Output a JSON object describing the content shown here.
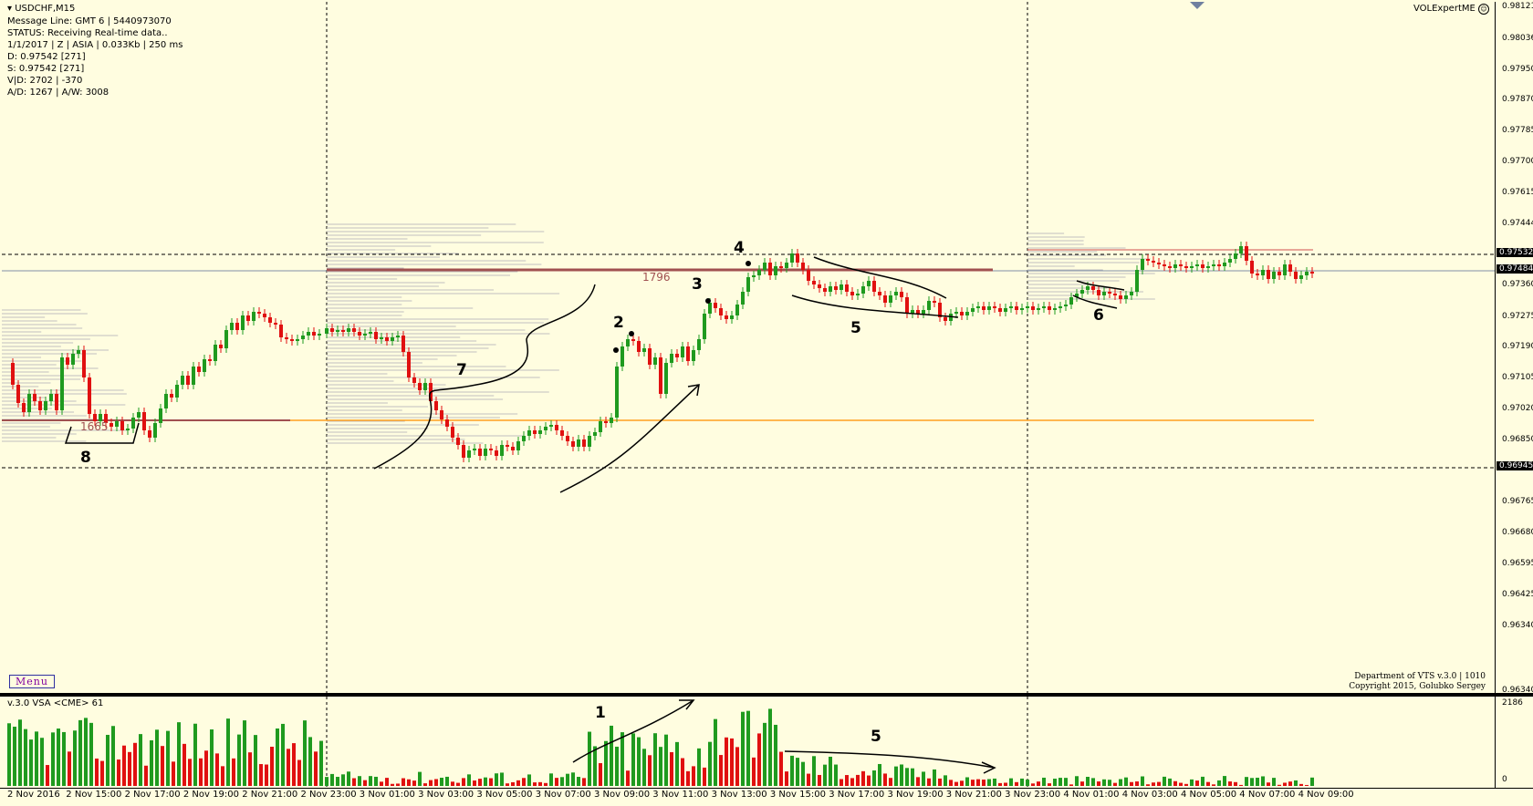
{
  "chart_header": {
    "symbol": "USDCHF,M15",
    "brand": "VOLExpertME"
  },
  "info_lines": [
    "Message Line: GMT 6 | 5440973070",
    "STATUS:  Receiving Real-time data..",
    "1/1/2017 | Z | ASIA | 0.033Kb | 250 ms",
    "D: 0.97542  [271]",
    "S: 0.97542  [271]",
    "V|D: 2702 | -370",
    "A/D: 1267 | A/W: 3008"
  ],
  "menu_label": "Menu",
  "credits": [
    "Department of VTS  v.3.0 | 1010",
    "Copyright 2015, Golubko Sergey"
  ],
  "indicator_label": "v.3.0 VSA <CME> 61",
  "volume_axis": {
    "max": "2186",
    "min": "0"
  },
  "price_labels": [
    "0.98121",
    "0.98036",
    "0.97950",
    "0.97870",
    "0.97785",
    "0.97700",
    "0.97615",
    "0.97444",
    "0.97360",
    "0.97275",
    "0.97190",
    "0.97105",
    "0.97020",
    "0.96850",
    "0.96765",
    "0.96680",
    "0.96595",
    "0.96425",
    "0.96340"
  ],
  "price_boxes": {
    "upper": "0.97532",
    "current": "0.97484",
    "lower": "0.96945"
  },
  "level_labels": {
    "upper": "1796",
    "lower": "1665"
  },
  "time_labels": [
    "2 Nov 2016",
    "2 Nov 15:00",
    "2 Nov 17:00",
    "2 Nov 19:00",
    "2 Nov 21:00",
    "2 Nov 23:00",
    "3 Nov 01:00",
    "3 Nov 03:00",
    "3 Nov 05:00",
    "3 Nov 07:00",
    "3 Nov 09:00",
    "3 Nov 11:00",
    "3 Nov 13:00",
    "3 Nov 15:00",
    "3 Nov 17:00",
    "3 Nov 19:00",
    "3 Nov 21:00",
    "3 Nov 23:00",
    "4 Nov 01:00",
    "4 Nov 03:00",
    "4 Nov 05:00",
    "4 Nov 07:00",
    "4 Nov 09:00"
  ],
  "annotations": {
    "n1": "1",
    "n2": "2",
    "n3": "3",
    "n4": "4",
    "n5a": "5",
    "n5b": "5",
    "n6": "6",
    "n7": "7",
    "n8": "8"
  },
  "colors": {
    "background": "#fffde0",
    "bull": "#1f9a1f",
    "bear": "#e01010",
    "level": "#a05050",
    "orange_level": "#ffa020"
  }
}
